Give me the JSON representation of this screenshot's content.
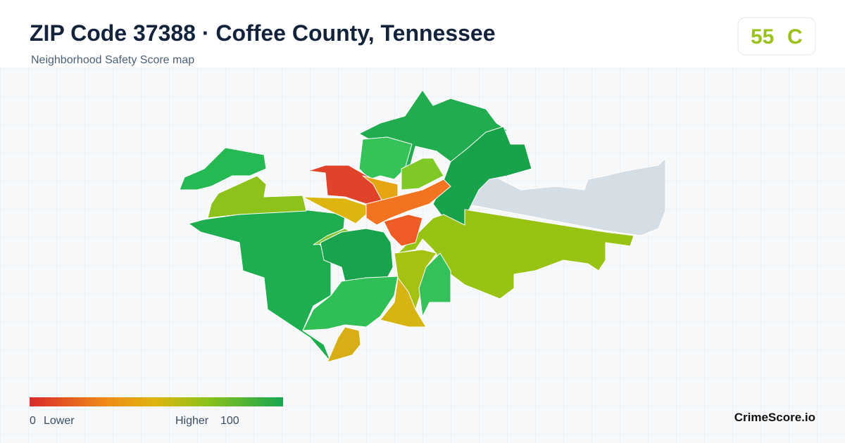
{
  "header": {
    "title": "ZIP Code 37388 · Coffee County, Tennessee",
    "subtitle": "Neighborhood Safety Score map"
  },
  "badge": {
    "score": 55,
    "grade": "C"
  },
  "legend": {
    "min": 0,
    "min_label": "Lower",
    "max_label": "Higher",
    "max": 100
  },
  "footer": {
    "brand": "CrimeScore.io"
  }
}
